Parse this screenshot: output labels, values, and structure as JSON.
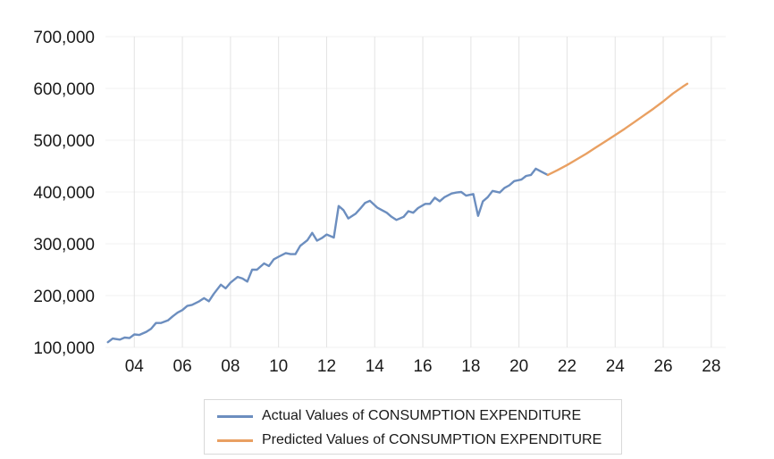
{
  "chart_data": {
    "type": "line",
    "ylim": [
      100000,
      700000
    ],
    "y_ticks": [
      "100,000",
      "200,000",
      "300,000",
      "400,000",
      "500,000",
      "600,000",
      "700,000"
    ],
    "y_tick_values": [
      100000,
      200000,
      300000,
      400000,
      500000,
      600000,
      700000
    ],
    "xlim": [
      2002.8,
      2028.6
    ],
    "x_ticks": [
      "04",
      "06",
      "08",
      "10",
      "12",
      "14",
      "16",
      "18",
      "20",
      "22",
      "24",
      "26",
      "28"
    ],
    "x_tick_values": [
      2004,
      2006,
      2008,
      2010,
      2012,
      2014,
      2016,
      2018,
      2020,
      2022,
      2024,
      2026,
      2028
    ],
    "grid": "vertical",
    "legend_position": "bottom",
    "series": [
      {
        "name": "Actual Values of CONSUMPTION EXPENDITURE",
        "color": "#6c8ebf",
        "points": [
          [
            2002.9,
            110000
          ],
          [
            2003.1,
            117000
          ],
          [
            2003.4,
            115000
          ],
          [
            2003.6,
            119000
          ],
          [
            2003.8,
            118000
          ],
          [
            2004.0,
            125000
          ],
          [
            2004.2,
            124000
          ],
          [
            2004.5,
            130000
          ],
          [
            2004.7,
            136000
          ],
          [
            2004.9,
            147000
          ],
          [
            2005.1,
            147000
          ],
          [
            2005.4,
            152000
          ],
          [
            2005.6,
            160000
          ],
          [
            2005.8,
            167000
          ],
          [
            2006.0,
            172000
          ],
          [
            2006.2,
            180000
          ],
          [
            2006.4,
            182000
          ],
          [
            2006.7,
            189000
          ],
          [
            2006.9,
            195000
          ],
          [
            2007.1,
            189000
          ],
          [
            2007.3,
            203000
          ],
          [
            2007.6,
            221000
          ],
          [
            2007.8,
            214000
          ],
          [
            2008.0,
            225000
          ],
          [
            2008.3,
            236000
          ],
          [
            2008.5,
            233000
          ],
          [
            2008.7,
            227000
          ],
          [
            2008.9,
            250000
          ],
          [
            2009.1,
            250000
          ],
          [
            2009.4,
            262000
          ],
          [
            2009.6,
            257000
          ],
          [
            2009.8,
            270000
          ],
          [
            2010.0,
            275000
          ],
          [
            2010.3,
            282000
          ],
          [
            2010.5,
            280000
          ],
          [
            2010.7,
            280000
          ],
          [
            2010.9,
            296000
          ],
          [
            2011.2,
            307000
          ],
          [
            2011.4,
            321000
          ],
          [
            2011.6,
            306000
          ],
          [
            2011.8,
            311000
          ],
          [
            2012.0,
            318000
          ],
          [
            2012.3,
            312000
          ],
          [
            2012.5,
            373000
          ],
          [
            2012.7,
            365000
          ],
          [
            2012.9,
            349000
          ],
          [
            2013.2,
            358000
          ],
          [
            2013.4,
            368000
          ],
          [
            2013.6,
            379000
          ],
          [
            2013.8,
            383000
          ],
          [
            2014.1,
            370000
          ],
          [
            2014.3,
            365000
          ],
          [
            2014.5,
            360000
          ],
          [
            2014.7,
            352000
          ],
          [
            2014.9,
            346000
          ],
          [
            2015.2,
            352000
          ],
          [
            2015.4,
            363000
          ],
          [
            2015.6,
            360000
          ],
          [
            2015.8,
            369000
          ],
          [
            2016.1,
            377000
          ],
          [
            2016.3,
            377000
          ],
          [
            2016.5,
            389000
          ],
          [
            2016.7,
            382000
          ],
          [
            2016.9,
            390000
          ],
          [
            2017.2,
            397000
          ],
          [
            2017.4,
            399000
          ],
          [
            2017.6,
            400000
          ],
          [
            2017.8,
            393000
          ],
          [
            2018.1,
            396000
          ],
          [
            2018.3,
            354000
          ],
          [
            2018.5,
            382000
          ],
          [
            2018.7,
            390000
          ],
          [
            2018.9,
            402000
          ],
          [
            2019.2,
            399000
          ],
          [
            2019.4,
            408000
          ],
          [
            2019.6,
            413000
          ],
          [
            2019.8,
            421000
          ],
          [
            2020.1,
            424000
          ],
          [
            2020.3,
            431000
          ],
          [
            2020.5,
            433000
          ],
          [
            2020.7,
            445000
          ],
          [
            2020.9,
            440000
          ],
          [
            2021.2,
            433000
          ]
        ]
      },
      {
        "name": "Predicted Values of CONSUMPTION EXPENDITURE",
        "color": "#e9a062",
        "points": [
          [
            2021.2,
            433000
          ],
          [
            2021.6,
            442000
          ],
          [
            2022.0,
            452000
          ],
          [
            2022.4,
            463000
          ],
          [
            2022.8,
            474000
          ],
          [
            2023.2,
            486000
          ],
          [
            2023.6,
            498000
          ],
          [
            2024.0,
            510000
          ],
          [
            2024.4,
            522000
          ],
          [
            2024.8,
            535000
          ],
          [
            2025.2,
            548000
          ],
          [
            2025.6,
            561000
          ],
          [
            2026.0,
            575000
          ],
          [
            2026.4,
            590000
          ],
          [
            2026.8,
            603000
          ],
          [
            2027.0,
            609000
          ]
        ]
      }
    ]
  }
}
